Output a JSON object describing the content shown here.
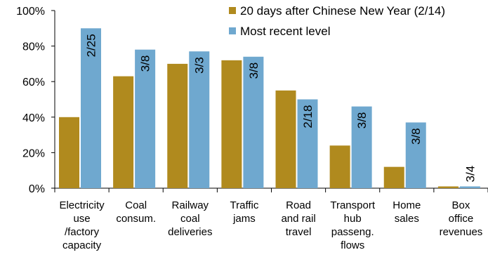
{
  "chart_data": {
    "type": "bar",
    "title": "",
    "xlabel": "",
    "ylabel": "",
    "ylim": [
      0,
      100
    ],
    "yticks": [
      "0%",
      "20%",
      "40%",
      "60%",
      "80%",
      "100%"
    ],
    "grid": false,
    "legend_position": "top-right",
    "categories": [
      [
        "Electricity",
        "use",
        "/factory",
        "capacity"
      ],
      [
        "Coal",
        "consum."
      ],
      [
        "Railway",
        "coal",
        "deliveries"
      ],
      [
        "Traffic",
        "jams"
      ],
      [
        "Road",
        "and rail",
        "travel"
      ],
      [
        "Transport",
        "hub",
        "passeng.",
        "flows"
      ],
      [
        "Home",
        "sales"
      ],
      [
        "Box",
        "office",
        "revenues"
      ]
    ],
    "series": [
      {
        "name": "20 days after Chinese New Year (2/14)",
        "color": "#B08A1E",
        "values": [
          40,
          63,
          70,
          72,
          55,
          24,
          12,
          1
        ]
      },
      {
        "name": "Most recent level",
        "color": "#6FA8CF",
        "values": [
          90,
          78,
          77,
          74,
          50,
          46,
          37,
          1
        ],
        "labels": [
          "2/25",
          "3/8",
          "3/3",
          "3/8",
          "2/18",
          "3/8",
          "3/8",
          "3/4"
        ]
      }
    ]
  }
}
